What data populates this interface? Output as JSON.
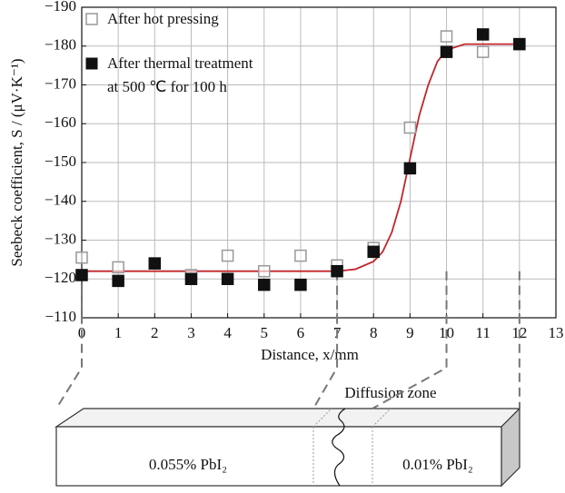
{
  "chart_data": {
    "type": "scatter",
    "x_label": "Distance, x/mm",
    "y_label": "Seebeck coefficient, S / (μV·K⁻¹)",
    "xlim": [
      0,
      13
    ],
    "xticks": [
      0,
      1,
      2,
      3,
      4,
      5,
      6,
      7,
      8,
      9,
      10,
      11,
      12,
      13
    ],
    "ylim": [
      -110,
      -190
    ],
    "yticks": [
      {
        "value": -110,
        "label": "−110"
      },
      {
        "value": -120,
        "label": "−120"
      },
      {
        "value": -130,
        "label": "−130"
      },
      {
        "value": -140,
        "label": "−140"
      },
      {
        "value": -150,
        "label": "−150"
      },
      {
        "value": -160,
        "label": "−160"
      },
      {
        "value": -170,
        "label": "−170"
      },
      {
        "value": -180,
        "label": "−180"
      },
      {
        "value": -190,
        "label": "−190"
      }
    ],
    "grid": true,
    "series": [
      {
        "name": "After hot pressing",
        "color": "#999999",
        "filled": false,
        "x": [
          0,
          1,
          2,
          3,
          4,
          5,
          6,
          7,
          8,
          9,
          10,
          11,
          12
        ],
        "values": [
          -125.5,
          -123,
          -124,
          -121,
          -126,
          -122,
          -126,
          -123.5,
          -128,
          -159,
          -182.5,
          -178.5,
          -180.5
        ]
      },
      {
        "name": "After thermal treatment at 500 ℃ for 100 h",
        "color": "#111111",
        "filled": true,
        "x": [
          0,
          1,
          2,
          3,
          4,
          5,
          6,
          7,
          8,
          9,
          10,
          11,
          12
        ],
        "values": [
          -121,
          -119.5,
          -124,
          -120,
          -120,
          -118.5,
          -118.5,
          -122,
          -127,
          -148.5,
          -178.5,
          -183,
          -180.5
        ]
      }
    ],
    "curve": {
      "color": "#c0262d",
      "x": [
        0,
        7,
        7.5,
        8,
        8.25,
        8.5,
        8.75,
        9,
        9.25,
        9.5,
        9.75,
        10,
        10.5,
        12
      ],
      "values": [
        -122,
        -122,
        -122.5,
        -124.5,
        -127,
        -132,
        -140,
        -151,
        -162,
        -170,
        -176,
        -179,
        -180.5,
        -180.5
      ]
    }
  },
  "schematic": {
    "zone_label": "Diffusion zone",
    "left_label": "0.055% PbI₂",
    "right_label": "0.01% PbI₂"
  }
}
